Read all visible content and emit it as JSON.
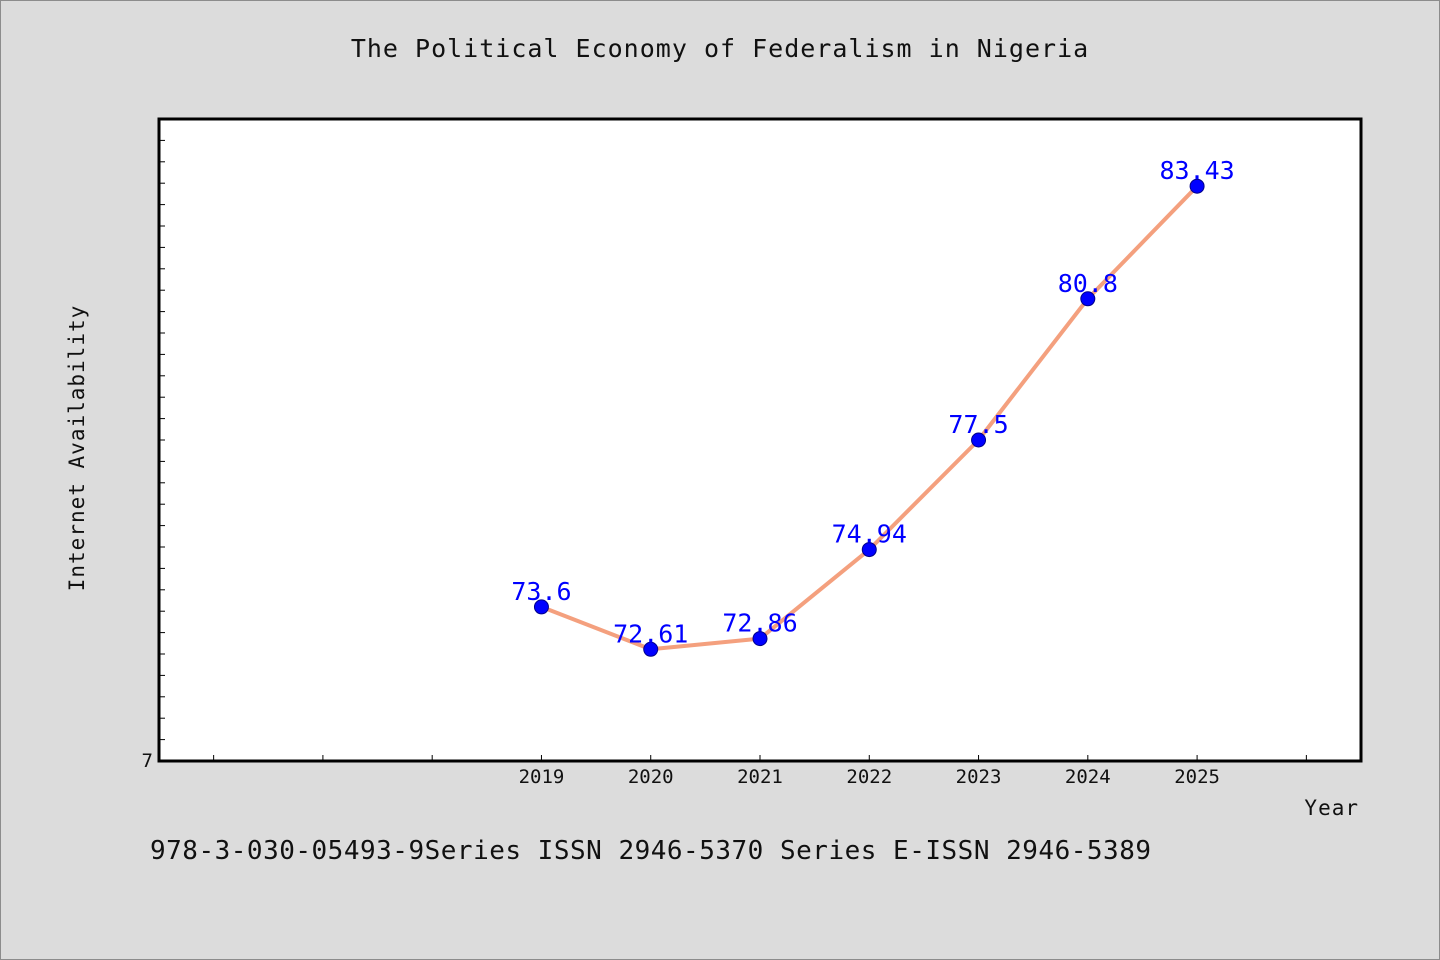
{
  "title": "The Political Economy of Federalism in Nigeria",
  "footer": "978-3-030-05493-9Series ISSN 2946-5370 Series E-ISSN 2946-5389",
  "chart_data": {
    "type": "line",
    "title": "The Political Economy of Federalism in Nigeria",
    "xlabel": "Year",
    "ylabel": "Internet Availability",
    "x": [
      2019,
      2020,
      2021,
      2022,
      2023,
      2024,
      2025
    ],
    "categories": [
      "2019",
      "2020",
      "2021",
      "2022",
      "2023",
      "2024",
      "2025"
    ],
    "series": [
      {
        "values": [
          73.6,
          72.61,
          72.86,
          74.94,
          77.5,
          80.8,
          83.43
        ],
        "data_labels": [
          "73.6",
          "72.61",
          "72.86",
          "74.94",
          "77.5",
          "80.8",
          "83.43"
        ]
      }
    ],
    "xlim": [
      2015.5,
      2026.5
    ],
    "ylim": [
      70,
      85
    ],
    "y_tick_labels": [
      "7"
    ],
    "grid": false,
    "legend": "none",
    "colors": {
      "line": "#f4a07e",
      "marker": "#0000ff",
      "label": "#0000ff",
      "background": "#dcdcdc",
      "plot_area": "#ffffff"
    }
  }
}
